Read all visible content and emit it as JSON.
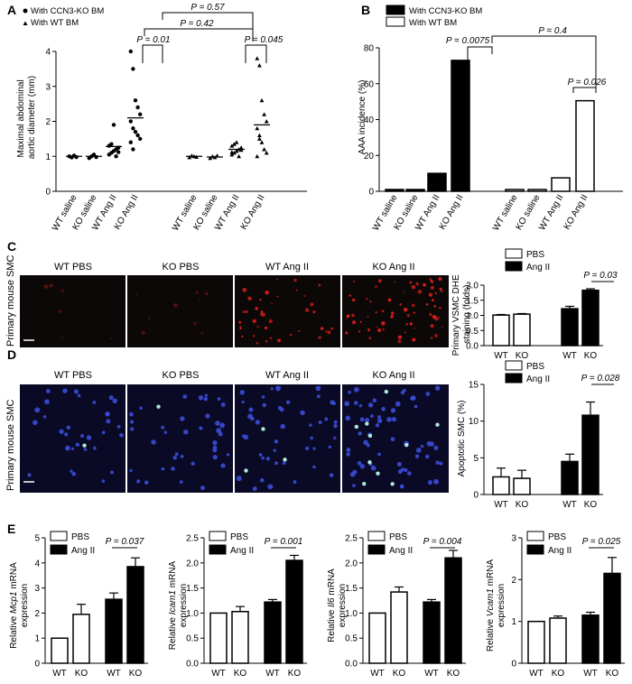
{
  "panels": {
    "A": {
      "letter": "A",
      "legend": [
        "With CCN3-KO BM",
        "With WT BM"
      ],
      "ylabel": [
        "Maximal abdominal",
        "aortic diameter (mm)"
      ],
      "yticks": [
        "0",
        "1",
        "2",
        "3",
        "4"
      ],
      "categories": [
        "WT saline",
        "KO saline",
        "WT Ang II",
        "KO Ang II",
        "WT saline",
        "KO saline",
        "WT Ang II",
        "KO Ang II"
      ],
      "pvalues": [
        "P = 0.57",
        "P = 0.42",
        "P = 0.01",
        "P = 0.045"
      ]
    },
    "B": {
      "letter": "B",
      "legend": [
        "With CCN3-KO BM",
        "With WT BM"
      ],
      "ylabel": "AAA incidence (%)",
      "yticks": [
        "0",
        "20",
        "40",
        "60",
        "80"
      ],
      "categories": [
        "WT saline",
        "KO saline",
        "WT Ang II",
        "KO Ang II",
        "WT saline",
        "KO saline",
        "WT Ang II",
        "KO Ang II"
      ],
      "pvalues": [
        "P = 0.0075",
        "P = 0.4",
        "P = 0.026"
      ]
    },
    "C": {
      "letter": "C",
      "side_label": "Primary mouse SMC",
      "images": [
        "WT PBS",
        "KO PBS",
        "WT Ang II",
        "KO Ang II"
      ],
      "legend": [
        "PBS",
        "Ang II"
      ],
      "ylabel": [
        "Primary VSMC DHE",
        "staining (folds)"
      ],
      "yticks": [
        "0.0",
        "0.5",
        "1.0",
        "1.5",
        "2.0"
      ],
      "xticks": [
        "WT",
        "KO",
        "WT",
        "KO"
      ],
      "pvalue": "P = 0.03"
    },
    "D": {
      "letter": "D",
      "side_label": "Primary mouse SMC",
      "images": [
        "WT PBS",
        "KO PBS",
        "WT Ang II",
        "KO Ang II"
      ],
      "legend": [
        "PBS",
        "Ang II"
      ],
      "ylabel": "Apoptotic SMC (%)",
      "yticks": [
        "0",
        "5",
        "10",
        "15"
      ],
      "xticks": [
        "WT",
        "KO",
        "WT",
        "KO"
      ],
      "pvalue": "P = 0.028"
    },
    "E": {
      "letter": "E",
      "legend": [
        "PBS",
        "Ang II"
      ],
      "xticks": [
        "WT",
        "KO",
        "WT",
        "KO"
      ]
    }
  },
  "chart_data": [
    {
      "id": "A",
      "type": "scatter",
      "ylim": [
        0,
        4
      ],
      "groups": [
        {
          "category": "WT saline",
          "marker": "circle",
          "mean": 1.0,
          "points": [
            1.0,
            0.97,
            1.02,
            0.98
          ]
        },
        {
          "category": "KO saline",
          "marker": "circle",
          "mean": 1.0,
          "points": [
            0.95,
            1.0,
            1.05,
            0.98
          ]
        },
        {
          "category": "WT Ang II",
          "marker": "circle",
          "mean": 1.28,
          "points": [
            1.05,
            1.1,
            1.15,
            1.2,
            1.25,
            1.3,
            1.35,
            1.9,
            1.0,
            1.12
          ]
        },
        {
          "category": "KO Ang II",
          "marker": "circle",
          "mean": 2.1,
          "points": [
            4.0,
            3.5,
            2.6,
            2.4,
            2.2,
            2.0,
            1.8,
            1.7,
            1.6,
            1.5,
            1.4,
            1.2
          ]
        },
        {
          "category": "WT saline",
          "marker": "triangle",
          "mean": 1.0,
          "points": [
            0.97,
            1.02,
            1.0,
            0.98
          ]
        },
        {
          "category": "KO saline",
          "marker": "triangle",
          "mean": 0.98,
          "points": [
            0.95,
            1.0,
            0.97,
            1.02
          ]
        },
        {
          "category": "WT Ang II",
          "marker": "triangle",
          "mean": 1.2,
          "points": [
            1.05,
            1.1,
            1.15,
            1.2,
            1.25,
            1.3,
            1.35,
            1.4,
            1.0,
            1.18,
            1.12
          ]
        },
        {
          "category": "KO Ang II",
          "marker": "triangle",
          "mean": 1.9,
          "points": [
            3.8,
            3.6,
            2.6,
            2.2,
            2.0,
            1.8,
            1.6,
            1.4,
            1.2,
            1.1,
            1.0,
            1.5
          ]
        }
      ]
    },
    {
      "id": "B",
      "type": "bar",
      "ylim": [
        0,
        80
      ],
      "series": [
        {
          "name": "With CCN3-KO BM",
          "values": [
            1,
            1,
            10,
            73
          ]
        },
        {
          "name": "With WT BM",
          "values": [
            1,
            1,
            7.5,
            50.5
          ]
        }
      ]
    },
    {
      "id": "C",
      "type": "bar",
      "ylim": [
        0,
        2.0
      ],
      "series": [
        {
          "name": "PBS",
          "values": [
            1.01,
            1.04
          ]
        },
        {
          "name": "Ang II",
          "values": [
            1.22,
            1.83
          ]
        }
      ],
      "errors": [
        0.02,
        0.02,
        0.08,
        0.05
      ]
    },
    {
      "id": "D",
      "type": "bar",
      "ylim": [
        0,
        15
      ],
      "series": [
        {
          "name": "PBS",
          "values": [
            2.4,
            2.2
          ]
        },
        {
          "name": "Ang II",
          "values": [
            4.5,
            10.8
          ]
        }
      ],
      "errors": [
        1.2,
        1.1,
        1.0,
        1.8
      ]
    },
    {
      "id": "E1",
      "type": "bar",
      "ylabel": [
        "Relative ",
        "Mcp1",
        " mRNA",
        "expression"
      ],
      "yticks": [
        "0",
        "1",
        "2",
        "3",
        "4",
        "5"
      ],
      "ylim": [
        0,
        5
      ],
      "values": [
        1.0,
        1.95,
        2.55,
        3.85
      ],
      "errors": [
        0,
        0.4,
        0.25,
        0.35
      ],
      "pvalue": "P = 0.037"
    },
    {
      "id": "E2",
      "type": "bar",
      "ylabel": [
        "Relative ",
        "Icam1",
        " mRNA",
        "expression"
      ],
      "yticks": [
        "0.0",
        "0.5",
        "1.0",
        "1.5",
        "2.0",
        "2.5"
      ],
      "ylim": [
        0,
        2.5
      ],
      "values": [
        1.0,
        1.03,
        1.22,
        2.05
      ],
      "errors": [
        0,
        0.1,
        0.05,
        0.1
      ],
      "pvalue": "P = 0.001"
    },
    {
      "id": "E3",
      "type": "bar",
      "ylabel": [
        "Relative ",
        "Il6",
        " mRNA",
        "expression"
      ],
      "yticks": [
        "0.0",
        "0.5",
        "1.0",
        "1.5",
        "2.0",
        "2.5"
      ],
      "ylim": [
        0,
        2.5
      ],
      "values": [
        1.0,
        1.42,
        1.22,
        2.1
      ],
      "errors": [
        0,
        0.1,
        0.05,
        0.15
      ],
      "pvalue": "P = 0.004"
    },
    {
      "id": "E4",
      "type": "bar",
      "ylabel": [
        "Relative ",
        "Vcam1",
        " mRNA",
        "expression"
      ],
      "yticks": [
        "0",
        "1",
        "2",
        "3"
      ],
      "ylim": [
        0,
        3
      ],
      "values": [
        1.0,
        1.08,
        1.15,
        2.15
      ],
      "errors": [
        0,
        0.05,
        0.07,
        0.38
      ],
      "pvalue": "P = 0.025"
    }
  ],
  "colors": {
    "filled": "#000000",
    "open": "#ffffff",
    "dhe": "#e0201a",
    "dapi": "#3a4bd6",
    "tunel": "#b8f5e0"
  }
}
